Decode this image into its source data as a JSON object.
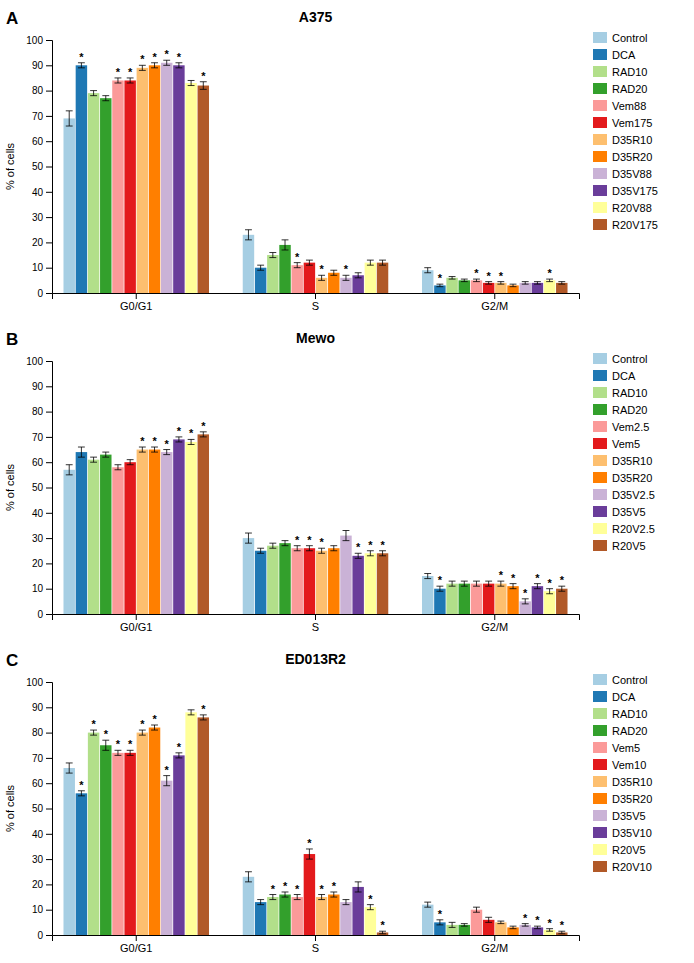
{
  "chart_data": [
    {
      "type": "bar",
      "title": "A375",
      "annotations": [
        "A"
      ],
      "ylabel": "% of cells",
      "categories": [
        "G0/G1",
        "S",
        "G2/M"
      ],
      "ylim": [
        0,
        100
      ],
      "yticks": [
        0,
        10,
        20,
        30,
        40,
        50,
        60,
        70,
        80,
        90,
        100
      ],
      "grid": false,
      "legend": "right",
      "series": [
        {
          "name": "Control",
          "values": [
            69,
            23,
            9
          ],
          "errors": [
            3.0,
            2.0,
            1.0
          ],
          "stars": [
            null,
            null,
            null
          ]
        },
        {
          "name": "DCA",
          "values": [
            90,
            10,
            3
          ],
          "errors": [
            1.0,
            1.0,
            0.5
          ],
          "stars": [
            "*",
            null,
            "*"
          ]
        },
        {
          "name": "RAD10",
          "values": [
            79,
            15,
            6
          ],
          "errors": [
            1.0,
            1.0,
            0.5
          ],
          "stars": [
            null,
            null,
            null
          ]
        },
        {
          "name": "RAD20",
          "values": [
            77,
            19,
            5
          ],
          "errors": [
            1.0,
            2.0,
            0.5
          ],
          "stars": [
            null,
            null,
            null
          ]
        },
        {
          "name": "Vem88",
          "values": [
            84,
            11,
            5
          ],
          "errors": [
            1.0,
            1.0,
            0.5
          ],
          "stars": [
            "*",
            "*",
            "*"
          ]
        },
        {
          "name": "Vem175",
          "values": [
            84,
            12,
            4
          ],
          "errors": [
            1.0,
            1.0,
            0.5
          ],
          "stars": [
            "*",
            null,
            "*"
          ]
        },
        {
          "name": "D35R10",
          "values": [
            89,
            6,
            4
          ],
          "errors": [
            1.0,
            1.0,
            0.5
          ],
          "stars": [
            "*",
            "*",
            "*"
          ]
        },
        {
          "name": "D35R20",
          "values": [
            90,
            8,
            3
          ],
          "errors": [
            1.0,
            1.0,
            0.5
          ],
          "stars": [
            "*",
            null,
            null
          ]
        },
        {
          "name": "D35V88",
          "values": [
            91,
            6,
            4
          ],
          "errors": [
            1.0,
            1.0,
            0.5
          ],
          "stars": [
            "*",
            "*",
            null
          ]
        },
        {
          "name": "D35V175",
          "values": [
            90,
            7,
            4
          ],
          "errors": [
            1.0,
            1.0,
            0.5
          ],
          "stars": [
            "*",
            null,
            null
          ]
        },
        {
          "name": "R20V88",
          "values": [
            83,
            12,
            5
          ],
          "errors": [
            1.0,
            1.0,
            0.5
          ],
          "stars": [
            null,
            null,
            "*"
          ]
        },
        {
          "name": "R20V175",
          "values": [
            82,
            12,
            4
          ],
          "errors": [
            1.5,
            1.0,
            0.5
          ],
          "stars": [
            "*",
            null,
            null
          ]
        }
      ]
    },
    {
      "type": "bar",
      "title": "Mewo",
      "annotations": [
        "B"
      ],
      "ylabel": "% of cells",
      "categories": [
        "G0/G1",
        "S",
        "G2/M"
      ],
      "ylim": [
        0,
        100
      ],
      "yticks": [
        0,
        10,
        20,
        30,
        40,
        50,
        60,
        70,
        80,
        90,
        100
      ],
      "grid": false,
      "legend": "right",
      "series": [
        {
          "name": "Control",
          "values": [
            57,
            30,
            15
          ],
          "errors": [
            2.0,
            2.0,
            1.0
          ],
          "stars": [
            null,
            null,
            null
          ]
        },
        {
          "name": "DCA",
          "values": [
            64,
            25,
            10
          ],
          "errors": [
            2.0,
            1.0,
            1.0
          ],
          "stars": [
            null,
            null,
            "*"
          ]
        },
        {
          "name": "RAD10",
          "values": [
            61,
            27,
            12
          ],
          "errors": [
            1.0,
            1.0,
            1.0
          ],
          "stars": [
            null,
            null,
            null
          ]
        },
        {
          "name": "RAD20",
          "values": [
            63,
            28,
            12
          ],
          "errors": [
            1.0,
            1.0,
            1.0
          ],
          "stars": [
            null,
            null,
            null
          ]
        },
        {
          "name": "Vem2.5",
          "values": [
            58,
            26,
            12
          ],
          "errors": [
            1.0,
            1.0,
            1.0
          ],
          "stars": [
            null,
            "*",
            null
          ]
        },
        {
          "name": "Vem5",
          "values": [
            60,
            26,
            12
          ],
          "errors": [
            1.0,
            1.0,
            1.0
          ],
          "stars": [
            null,
            "*",
            null
          ]
        },
        {
          "name": "D35R10",
          "values": [
            65,
            25,
            12
          ],
          "errors": [
            1.0,
            1.0,
            1.0
          ],
          "stars": [
            "*",
            "*",
            "*"
          ]
        },
        {
          "name": "D35R20",
          "values": [
            65,
            26,
            11
          ],
          "errors": [
            1.0,
            1.0,
            1.0
          ],
          "stars": [
            "*",
            null,
            "*"
          ]
        },
        {
          "name": "D35V2.5",
          "values": [
            64,
            31,
            5
          ],
          "errors": [
            1.0,
            2.0,
            1.0
          ],
          "stars": [
            "*",
            null,
            "*"
          ]
        },
        {
          "name": "D35V5",
          "values": [
            69,
            23,
            11
          ],
          "errors": [
            1.0,
            1.0,
            1.0
          ],
          "stars": [
            "*",
            "*",
            "*"
          ]
        },
        {
          "name": "R20V2.5",
          "values": [
            68,
            24,
            9
          ],
          "errors": [
            1.0,
            1.0,
            1.0
          ],
          "stars": [
            "*",
            "*",
            "*"
          ]
        },
        {
          "name": "R20V5",
          "values": [
            71,
            24,
            10
          ],
          "errors": [
            1.0,
            1.0,
            1.0
          ],
          "stars": [
            "*",
            "*",
            "*"
          ]
        }
      ]
    },
    {
      "type": "bar",
      "title": "ED013R2",
      "annotations": [
        "C"
      ],
      "ylabel": "% of cells",
      "categories": [
        "G0/G1",
        "S",
        "G2/M"
      ],
      "ylim": [
        0,
        100
      ],
      "yticks": [
        0,
        10,
        20,
        30,
        40,
        50,
        60,
        70,
        80,
        90,
        100
      ],
      "grid": false,
      "legend": "right",
      "series": [
        {
          "name": "Control",
          "values": [
            66,
            23,
            12
          ],
          "errors": [
            2.0,
            2.0,
            1.0
          ],
          "stars": [
            null,
            null,
            null
          ]
        },
        {
          "name": "DCA",
          "values": [
            56,
            13,
            5
          ],
          "errors": [
            1.0,
            1.0,
            1.0
          ],
          "stars": [
            "*",
            null,
            "*"
          ]
        },
        {
          "name": "RAD10",
          "values": [
            80,
            15,
            4
          ],
          "errors": [
            1.0,
            1.0,
            1.0
          ],
          "stars": [
            "*",
            "*",
            null
          ]
        },
        {
          "name": "RAD20",
          "values": [
            75,
            16,
            4
          ],
          "errors": [
            2.0,
            1.0,
            0.5
          ],
          "stars": [
            "*",
            "*",
            null
          ]
        },
        {
          "name": "Vem5",
          "values": [
            72,
            15,
            10
          ],
          "errors": [
            1.0,
            1.0,
            1.0
          ],
          "stars": [
            "*",
            "*",
            null
          ]
        },
        {
          "name": "Vem10",
          "values": [
            72,
            32,
            6
          ],
          "errors": [
            1.0,
            2.0,
            1.0
          ],
          "stars": [
            "*",
            "*",
            null
          ]
        },
        {
          "name": "D35R10",
          "values": [
            80,
            15,
            5
          ],
          "errors": [
            1.0,
            1.0,
            0.5
          ],
          "stars": [
            "*",
            "*",
            null
          ]
        },
        {
          "name": "D35R20",
          "values": [
            82,
            16,
            3
          ],
          "errors": [
            1.0,
            1.0,
            0.5
          ],
          "stars": [
            "*",
            "*",
            null
          ]
        },
        {
          "name": "D35V5",
          "values": [
            61,
            13,
            4
          ],
          "errors": [
            2.0,
            1.0,
            0.5
          ],
          "stars": [
            "*",
            null,
            "*"
          ]
        },
        {
          "name": "D35V10",
          "values": [
            71,
            19,
            3
          ],
          "errors": [
            1.0,
            2.0,
            0.5
          ],
          "stars": [
            "*",
            null,
            "*"
          ]
        },
        {
          "name": "R20V5",
          "values": [
            88,
            11,
            2
          ],
          "errors": [
            1.0,
            1.0,
            0.5
          ],
          "stars": [
            null,
            "*",
            "*"
          ]
        },
        {
          "name": "R20V10",
          "values": [
            86,
            1,
            1
          ],
          "errors": [
            1.0,
            0.5,
            0.5
          ],
          "stars": [
            "*",
            "*",
            "*"
          ]
        }
      ]
    }
  ]
}
